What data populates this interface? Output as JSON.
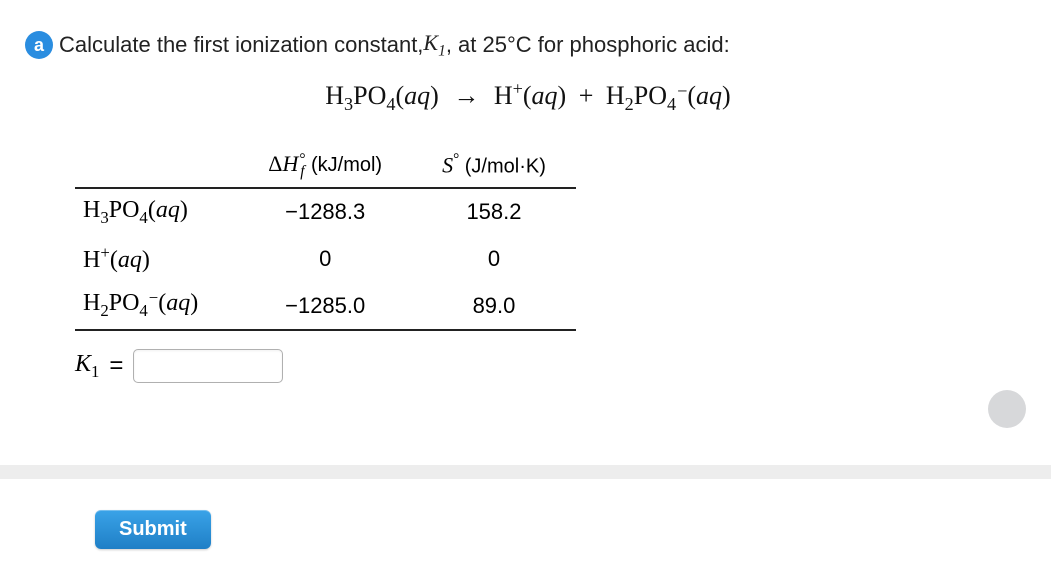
{
  "colors": {
    "part_badge_bg": "#2a8de0",
    "submit_bg_top": "#3aa3e8",
    "submit_bg_bottom": "#1f7fc6",
    "text": "#222222",
    "rule": "#222222",
    "grey_bar": "#ededed",
    "grey_dot": "#d7d8da",
    "input_border": "#b0b0b0"
  },
  "part": {
    "label": "a",
    "question_prefix": "Calculate the first ionization constant, ",
    "k_symbol": "K",
    "k_sub": "1",
    "question_suffix": ", at 25°C for phosphoric acid:"
  },
  "equation": {
    "lhs": "H₃PO₄(aq)",
    "arrow": "→",
    "rhs1": "H⁺(aq)",
    "plus": "+",
    "rhs2": "H₂PO₄⁻(aq)"
  },
  "table": {
    "headers": {
      "dH_symbol": "ΔH",
      "dH_sup": "°",
      "dH_sub": "f",
      "dH_unit": "(kJ/mol)",
      "S_symbol": "S",
      "S_sup": "°",
      "S_unit": "(J/mol·K)"
    },
    "rows": [
      {
        "species_html": "H<sub>3</sub>PO<sub>4</sub>(<i>aq</i>)",
        "dH": "−1288.3",
        "S": "158.2"
      },
      {
        "species_html": "H<sup>+</sup>(<i>aq</i>)",
        "dH": "0",
        "S": "0"
      },
      {
        "species_html": "H<sub>2</sub>PO<sub>4</sub><span class='sup-sub'><span>−</span><span>&nbsp;</span></span>(<i>aq</i>)",
        "dH": "−1285.0",
        "S": "89.0"
      }
    ]
  },
  "answer": {
    "label_symbol": "K",
    "label_sub": "1",
    "equals": "=",
    "value": ""
  },
  "submit_label": "Submit"
}
